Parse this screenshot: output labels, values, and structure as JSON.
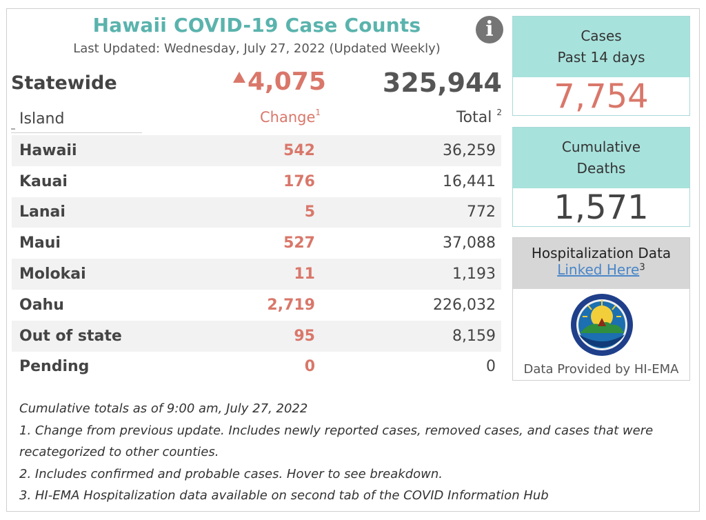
{
  "header": {
    "title": "Hawaii COVID-19 Case Counts",
    "last_updated": "Last Updated: Wednesday, July 27, 2022 (Updated Weekly)",
    "info_icon": "info-icon"
  },
  "statewide": {
    "label": "Statewide",
    "change": "4,075",
    "total": "325,944"
  },
  "table": {
    "col_island": "Island",
    "col_change": "Change",
    "col_change_sup": "1",
    "col_total": "Total",
    "col_total_sup": "2",
    "rows": [
      {
        "island": "Hawaii",
        "change": "542",
        "total": "36,259"
      },
      {
        "island": "Kauai",
        "change": "176",
        "total": "16,441"
      },
      {
        "island": "Lanai",
        "change": "5",
        "total": "772"
      },
      {
        "island": "Maui",
        "change": "527",
        "total": "37,088"
      },
      {
        "island": "Molokai",
        "change": "11",
        "total": "1,193"
      },
      {
        "island": "Oahu",
        "change": "2,719",
        "total": "226,032"
      },
      {
        "island": "Out of state",
        "change": "95",
        "total": "8,159"
      },
      {
        "island": "Pending",
        "change": "0",
        "total": "0"
      }
    ]
  },
  "cards": {
    "cases": {
      "line1": "Cases",
      "line2": "Past 14 days",
      "value": "7,754"
    },
    "deaths": {
      "line1": "Cumulative",
      "line2": "Deaths",
      "value": "1,571"
    }
  },
  "hospitalization": {
    "title": "Hospitalization Data",
    "link": "Linked Here",
    "link_sup": "3",
    "provided": "Data Provided by HI-EMA"
  },
  "notes": {
    "line0": "Cumulative totals as of 9:00 am, July 27, 2022",
    "line1": "1. Change from previous update. Includes newly reported cases, removed cases, and cases that were recategorized to other counties.",
    "line2": "2. Includes confirmed and probable cases. Hover to see breakdown.",
    "line3": "3. HI-EMA Hospitalization data available on second tab of the COVID Information Hub"
  },
  "colors": {
    "title_teal": "#5ab3ad",
    "change_salmon": "#d9776a",
    "card_header": "#a8e2dc"
  }
}
